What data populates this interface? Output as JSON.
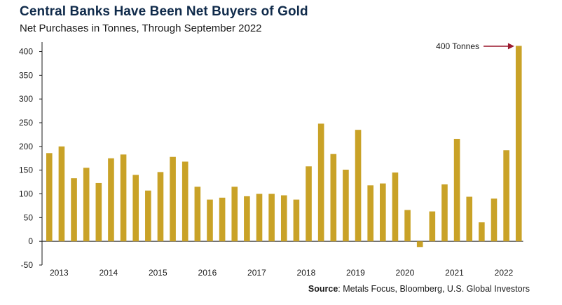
{
  "chart_data": {
    "type": "bar",
    "title": "Central Banks Have Been Net Buyers of Gold",
    "subtitle": "Net Purchases in Tonnes, Through September 2022",
    "ylim": [
      -50,
      420
    ],
    "yticks": [
      -50,
      0,
      50,
      100,
      150,
      200,
      250,
      300,
      350,
      400
    ],
    "year_labels": [
      "2013",
      "2014",
      "2015",
      "2016",
      "2017",
      "2018",
      "2019",
      "2020",
      "2021",
      "2022"
    ],
    "quarters_per_year": 4,
    "series": [
      {
        "values": [
          186,
          200,
          133,
          155,
          123,
          175,
          183,
          140,
          107,
          146,
          178,
          168,
          115,
          88,
          92,
          115,
          95,
          100,
          100,
          97,
          88,
          158,
          248,
          184,
          151,
          235,
          118,
          122,
          145,
          66,
          -12,
          63,
          120,
          216,
          94,
          40,
          90,
          192,
          412
        ]
      }
    ],
    "annotation": {
      "text": "400 Tonnes",
      "color": "#9b1b30"
    },
    "bar_color": "#c9a227",
    "grid": false
  },
  "source": {
    "label": "Source",
    "text": ": Metals Focus, Bloomberg, U.S. Global Investors"
  }
}
